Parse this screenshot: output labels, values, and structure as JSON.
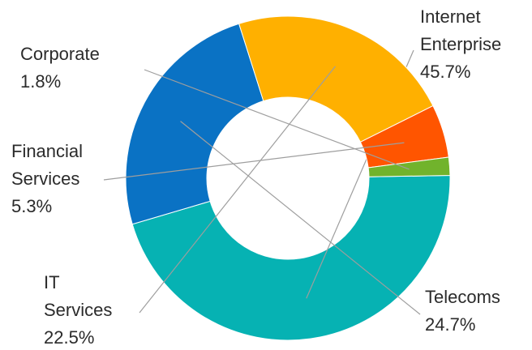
{
  "chart_data": {
    "type": "pie",
    "donut": true,
    "title": "",
    "slices": [
      {
        "lines": [
          "Internet",
          "Enterprise"
        ],
        "percent_label": "45.7%",
        "value": 45.7,
        "color": "#06B2B3"
      },
      {
        "lines": [
          "Telecoms"
        ],
        "percent_label": "24.7%",
        "value": 24.7,
        "color": "#0A72C4"
      },
      {
        "lines": [
          "IT",
          "Services"
        ],
        "percent_label": "22.5%",
        "value": 22.5,
        "color": "#FFB000"
      },
      {
        "lines": [
          "Financial",
          "Services"
        ],
        "percent_label": "5.3%",
        "value": 5.3,
        "color": "#FF5500"
      },
      {
        "lines": [
          "Corporate"
        ],
        "percent_label": "1.8%",
        "value": 1.8,
        "color": "#71B32C"
      }
    ]
  }
}
